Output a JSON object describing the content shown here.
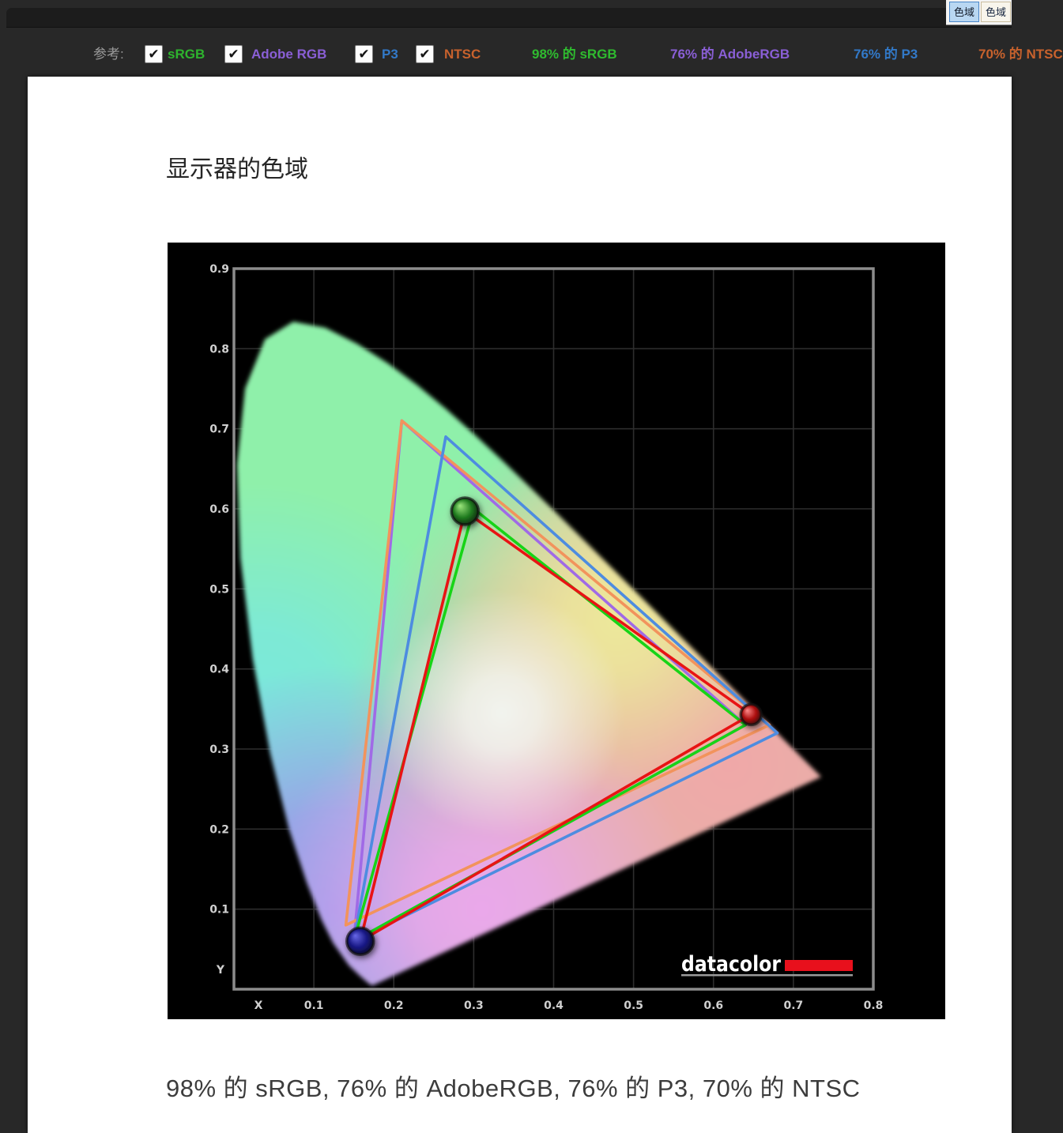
{
  "tabs": [
    {
      "label": "色域",
      "selected": true
    },
    {
      "label": "色域",
      "selected": false
    }
  ],
  "toolbar": {
    "reference_label": "参考:",
    "checkboxes": [
      {
        "label": "sRGB",
        "color": "#2eb32e",
        "checked": true,
        "check_glyph": "✔"
      },
      {
        "label": "Adobe RGB",
        "color": "#8a5fd6",
        "checked": true,
        "check_glyph": "✔"
      },
      {
        "label": "P3",
        "color": "#3279c8",
        "checked": true,
        "check_glyph": "✔"
      },
      {
        "label": "NTSC",
        "color": "#c8622d",
        "checked": true,
        "check_glyph": "✔"
      }
    ],
    "stats": [
      {
        "text": "98% 的 sRGB",
        "color": "#2fbb2f"
      },
      {
        "text": "76% 的 AdobeRGB",
        "color": "#8a5fd6"
      },
      {
        "text": "76% 的 P3",
        "color": "#3279c8"
      },
      {
        "text": "70% 的 NTSC",
        "color": "#c8622d"
      }
    ]
  },
  "content": {
    "title": "显示器的色域",
    "caption": "98% 的 sRGB, 76% 的 AdobeRGB, 76% 的 P3, 70% 的 NTSC"
  },
  "chart_data": {
    "type": "area",
    "subtype": "CIE 1931 xy chromaticity diagram with color-gamut triangles",
    "title": "",
    "xlabel": "X",
    "ylabel": "Y",
    "xlim": [
      0,
      0.8
    ],
    "ylim": [
      0,
      0.9
    ],
    "xticks": [
      0.1,
      0.2,
      0.3,
      0.4,
      0.5,
      0.6,
      0.7,
      0.8
    ],
    "yticks": [
      0.1,
      0.2,
      0.3,
      0.4,
      0.5,
      0.6,
      0.7,
      0.8,
      0.9
    ],
    "grid": true,
    "background": "#000000",
    "grid_color": "#2d2d2d",
    "border_color": "#8c8c8c",
    "tick_color": "#d0d0d0",
    "series": [
      {
        "name": "Adobe RGB",
        "color": "#a06ae6",
        "points": [
          [
            0.64,
            0.33
          ],
          [
            0.21,
            0.71
          ],
          [
            0.15,
            0.06
          ]
        ]
      },
      {
        "name": "NTSC",
        "color": "#f2935c",
        "points": [
          [
            0.67,
            0.33
          ],
          [
            0.21,
            0.71
          ],
          [
            0.14,
            0.08
          ]
        ]
      },
      {
        "name": "P3",
        "color": "#4d8ce0",
        "points": [
          [
            0.68,
            0.32
          ],
          [
            0.265,
            0.69
          ],
          [
            0.15,
            0.06
          ]
        ]
      },
      {
        "name": "sRGB",
        "color": "#17d417",
        "points": [
          [
            0.64,
            0.33
          ],
          [
            0.3,
            0.6
          ],
          [
            0.15,
            0.06
          ]
        ]
      },
      {
        "name": "display",
        "color": "#e81414",
        "points": [
          [
            0.647,
            0.343
          ],
          [
            0.289,
            0.597
          ],
          [
            0.158,
            0.06
          ]
        ]
      }
    ],
    "markers": [
      {
        "name": "green-primary",
        "x": 0.289,
        "y": 0.597,
        "r": 17,
        "inner": "#9ee87e",
        "outer": "#1e7a1e"
      },
      {
        "name": "red-primary",
        "x": 0.647,
        "y": 0.343,
        "r": 13,
        "inner": "#ff8c8c",
        "outer": "#a80a0a"
      },
      {
        "name": "blue-primary",
        "x": 0.158,
        "y": 0.06,
        "r": 17,
        "inner": "#6868e8",
        "outer": "#151580"
      }
    ],
    "spectrum_colors": {
      "base_green": "#8ff0aa",
      "cyan": "#7ae8dc",
      "periwinkle": "#9a9aec",
      "magenta": "#eaa8ea",
      "salmon": "#f0a8a8",
      "yellow": "#ece89a",
      "white": "#f2f4ee"
    },
    "locus": [
      [
        0.1741,
        0.005
      ],
      [
        0.1714,
        0.0051
      ],
      [
        0.1644,
        0.0109
      ],
      [
        0.1566,
        0.0177
      ],
      [
        0.144,
        0.0297
      ],
      [
        0.1241,
        0.0578
      ],
      [
        0.1096,
        0.0868
      ],
      [
        0.0913,
        0.1327
      ],
      [
        0.0687,
        0.2007
      ],
      [
        0.0454,
        0.295
      ],
      [
        0.0235,
        0.4127
      ],
      [
        0.0082,
        0.5384
      ],
      [
        0.0039,
        0.6548
      ],
      [
        0.0139,
        0.7502
      ],
      [
        0.0389,
        0.812
      ],
      [
        0.0743,
        0.8338
      ],
      [
        0.1142,
        0.8262
      ],
      [
        0.1547,
        0.8059
      ],
      [
        0.1929,
        0.7816
      ],
      [
        0.2296,
        0.7543
      ],
      [
        0.2658,
        0.7243
      ],
      [
        0.3016,
        0.6923
      ],
      [
        0.3373,
        0.6589
      ],
      [
        0.3731,
        0.6245
      ],
      [
        0.4087,
        0.5896
      ],
      [
        0.4441,
        0.5547
      ],
      [
        0.4788,
        0.5202
      ],
      [
        0.5125,
        0.4866
      ],
      [
        0.5448,
        0.4544
      ],
      [
        0.5752,
        0.4242
      ],
      [
        0.6029,
        0.3965
      ],
      [
        0.627,
        0.3725
      ],
      [
        0.6482,
        0.3514
      ],
      [
        0.6658,
        0.334
      ],
      [
        0.6915,
        0.3083
      ],
      [
        0.714,
        0.2859
      ],
      [
        0.7347,
        0.2653
      ]
    ],
    "logo": {
      "text": "datacolor",
      "text_color": "#ffffff",
      "bar_color": "#e8101c",
      "underline_color": "#9a9a9a"
    }
  }
}
